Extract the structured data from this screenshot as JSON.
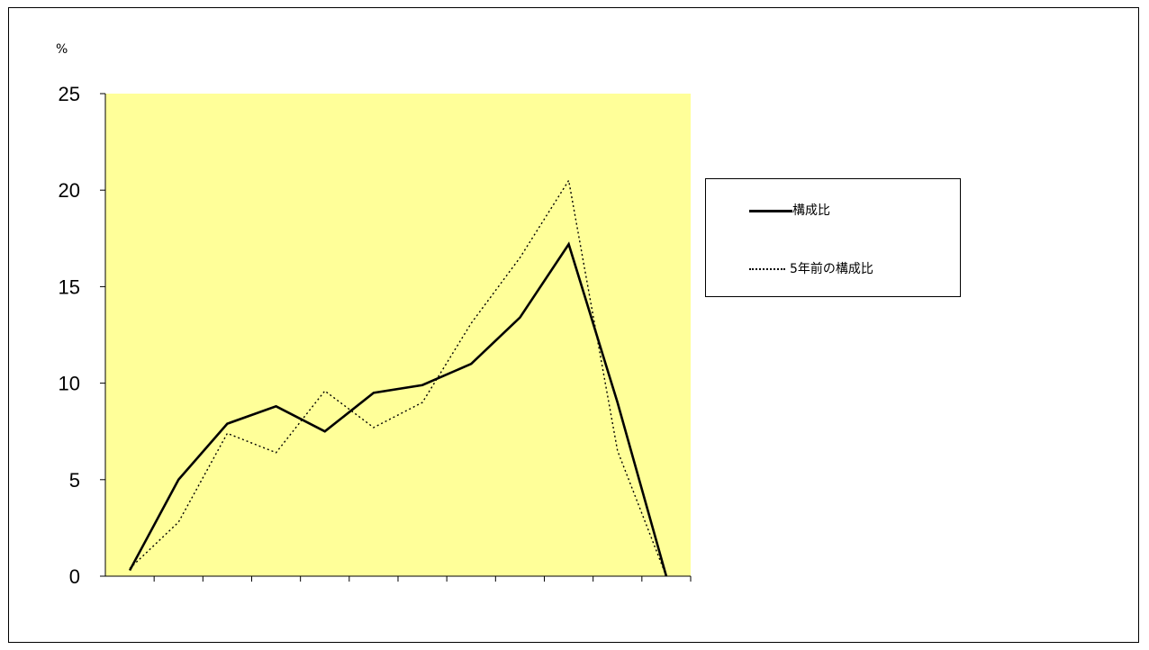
{
  "chart_data": {
    "type": "line",
    "unit": "%",
    "ylim": [
      0,
      25
    ],
    "yticks": [
      "0",
      "5",
      "10",
      "15",
      "20",
      "25"
    ],
    "x_count": 12,
    "plot_background": "#FFFF99",
    "grid": false,
    "legend_position": "right",
    "series": [
      {
        "name": "構成比",
        "style": "solid",
        "color": "#000000",
        "values": [
          0.3,
          5.0,
          7.9,
          8.8,
          7.5,
          9.5,
          9.9,
          11.0,
          13.4,
          17.2,
          9.0,
          0.0
        ]
      },
      {
        "name": "5年前の構成比",
        "style": "dotted",
        "color": "#000000",
        "values": [
          0.4,
          2.8,
          7.4,
          6.4,
          9.6,
          7.7,
          9.0,
          13.1,
          16.5,
          20.5,
          6.5,
          0.0
        ]
      }
    ]
  }
}
